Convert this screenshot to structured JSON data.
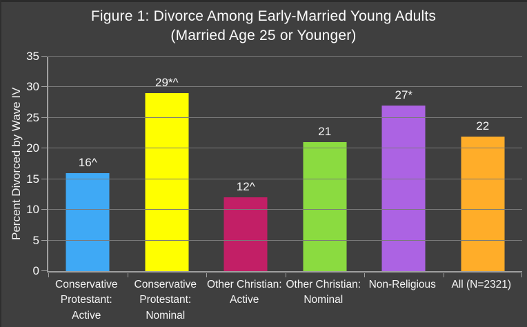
{
  "figure": {
    "title_line1": "Figure 1: Divorce Among Early-Married Young Adults",
    "title_line2": "(Married Age 25 or Younger)"
  },
  "chart_data": {
    "type": "bar",
    "title": "Figure 1: Divorce Among Early-Married Young Adults (Married Age 25 or Younger)",
    "categories": [
      "Conservative Protestant: Active",
      "Conservative Protestant: Nominal",
      "Other Christian: Active",
      "Other Christian: Nominal",
      "Non-Religious",
      "All (N=2321)"
    ],
    "values": [
      16,
      29,
      12,
      21,
      27,
      22
    ],
    "bar_labels": [
      "16^",
      "29*^",
      "12^",
      "21",
      "27*",
      "22"
    ],
    "bar_colors": [
      "#3FA9F5",
      "#FFFF00",
      "#C21F66",
      "#8BDB40",
      "#AC63E3",
      "#FFAD29"
    ],
    "xlabel": "",
    "ylabel": "Percent Divorced by Wave IV",
    "ylim": [
      0,
      35
    ],
    "yticks": [
      0,
      5,
      10,
      15,
      20,
      25,
      30,
      35
    ],
    "grid": true,
    "legend_position": "none",
    "background_color": "#3F3F3F",
    "text_color": "#F5F5F5",
    "gridline_color": "#7A7A7A",
    "axis_color": "#A0A0A0"
  }
}
